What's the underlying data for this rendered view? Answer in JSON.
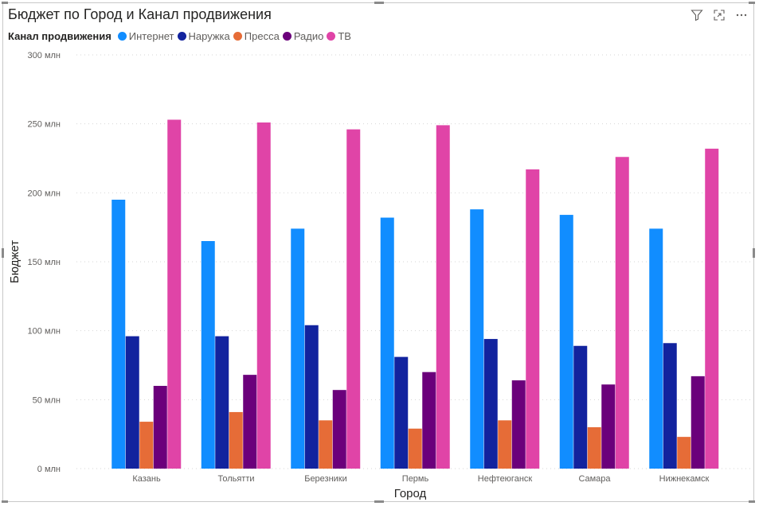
{
  "chart_data": {
    "type": "bar",
    "title": "Бюджет по Город и Канал продвижения",
    "legend_title": "Канал продвижения",
    "xlabel": "Город",
    "ylabel": "Бюджет",
    "categories": [
      "Казань",
      "Тольятти",
      "Березники",
      "Пермь",
      "Нефтеюганск",
      "Самара",
      "Нижнекамск"
    ],
    "series": [
      {
        "name": "Интернет",
        "color": "#118dff",
        "values": [
          195,
          165,
          174,
          182,
          188,
          184,
          174
        ]
      },
      {
        "name": "Наружка",
        "color": "#12239e",
        "values": [
          96,
          96,
          104,
          81,
          94,
          89,
          91
        ]
      },
      {
        "name": "Пресса",
        "color": "#e66c37",
        "values": [
          34,
          41,
          35,
          29,
          35,
          30,
          23
        ]
      },
      {
        "name": "Радио",
        "color": "#6b007b",
        "values": [
          60,
          68,
          57,
          70,
          64,
          61,
          67
        ]
      },
      {
        "name": "ТВ",
        "color": "#e044a7",
        "values": [
          253,
          251,
          246,
          249,
          217,
          226,
          232
        ]
      }
    ],
    "ylim": [
      0,
      300
    ],
    "yticks": [
      0,
      50,
      100,
      150,
      200,
      250,
      300
    ],
    "ytick_labels": [
      "0 млн",
      "50 млн",
      "100 млн",
      "150 млн",
      "200 млн",
      "250 млн",
      "300 млн"
    ],
    "unit": "млн",
    "grid": true,
    "legend_position": "top-left"
  },
  "icons": {
    "filter": "filter-icon",
    "focus": "focus-mode-icon",
    "more": "more-options-icon"
  }
}
